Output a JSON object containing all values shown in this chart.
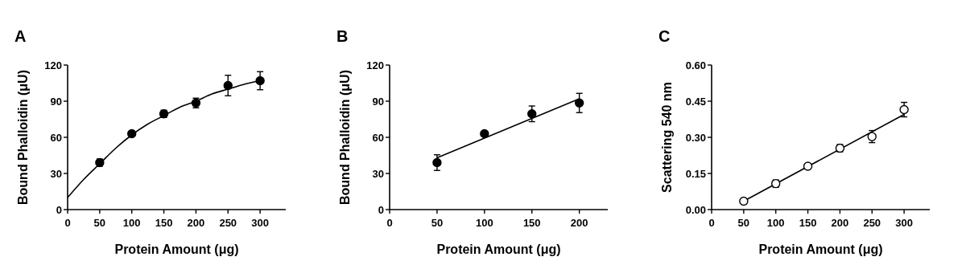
{
  "chart_data": [
    {
      "type": "scatter",
      "title": "A",
      "xlabel": "Protein Amount (μg)",
      "ylabel": "Bound Phalloidin (μU)",
      "xlim": [
        0,
        340
      ],
      "xticks": [
        0,
        50,
        100,
        150,
        200,
        250,
        300
      ],
      "ylim": [
        0,
        120
      ],
      "yticks": [
        0,
        30,
        60,
        90,
        120
      ],
      "series": [
        {
          "type": "line",
          "marker": "none",
          "color": "#000000",
          "x": [
            0,
            25,
            50,
            75,
            100,
            125,
            150,
            175,
            200,
            225,
            250,
            275,
            300
          ],
          "values": [
            10,
            25,
            38,
            51,
            62,
            71,
            78,
            85,
            90,
            96,
            100,
            104,
            107
          ]
        },
        {
          "marker": "circle",
          "color": "#000000",
          "x": [
            50,
            100,
            150,
            200,
            250,
            300
          ],
          "values": [
            39,
            63,
            79.5,
            88.5,
            103,
            107
          ],
          "errors": [
            3,
            null,
            3,
            4,
            8.5,
            7.5
          ]
        }
      ]
    },
    {
      "type": "scatter",
      "title": "B",
      "xlabel": "Protein Amount (μg)",
      "ylabel": "Bound Phalloidin (μU)",
      "xlim": [
        0,
        230
      ],
      "xticks": [
        0,
        50,
        100,
        150,
        200
      ],
      "ylim": [
        0,
        120
      ],
      "yticks": [
        0,
        30,
        60,
        90,
        120
      ],
      "series": [
        {
          "type": "line",
          "marker": "none",
          "color": "#000000",
          "x": [
            50,
            200
          ],
          "values": [
            43,
            92
          ]
        },
        {
          "marker": "circle",
          "color": "#000000",
          "x": [
            50,
            100,
            150,
            200
          ],
          "values": [
            39,
            63,
            79.5,
            88.5
          ],
          "errors": [
            6.5,
            null,
            6.5,
            8
          ]
        }
      ]
    },
    {
      "type": "scatter",
      "title": "C",
      "xlabel": "Protein Amount (μg)",
      "ylabel": "Scattering 540 nm",
      "xlim": [
        0,
        340
      ],
      "xticks": [
        0,
        50,
        100,
        150,
        200,
        250,
        300
      ],
      "ylim": [
        0,
        0.6
      ],
      "yticks": [
        {
          "value": 0,
          "label": "0.00"
        },
        {
          "value": 0.15,
          "label": "0.15"
        },
        {
          "value": 0.3,
          "label": "0.30"
        },
        {
          "value": 0.45,
          "label": "0.45"
        },
        {
          "value": 0.6,
          "label": "0.60"
        }
      ],
      "series": [
        {
          "type": "line",
          "marker": "none",
          "color": "#000000",
          "x": [
            50,
            300
          ],
          "values": [
            0.035,
            0.395
          ]
        },
        {
          "marker": "circle",
          "color": "#ffffff",
          "x": [
            50,
            100,
            150,
            200,
            250,
            300
          ],
          "values": [
            0.035,
            0.108,
            0.18,
            0.255,
            0.303,
            0.415
          ],
          "errors": [
            null,
            0.015,
            null,
            0.015,
            0.025,
            0.03
          ]
        }
      ]
    }
  ]
}
